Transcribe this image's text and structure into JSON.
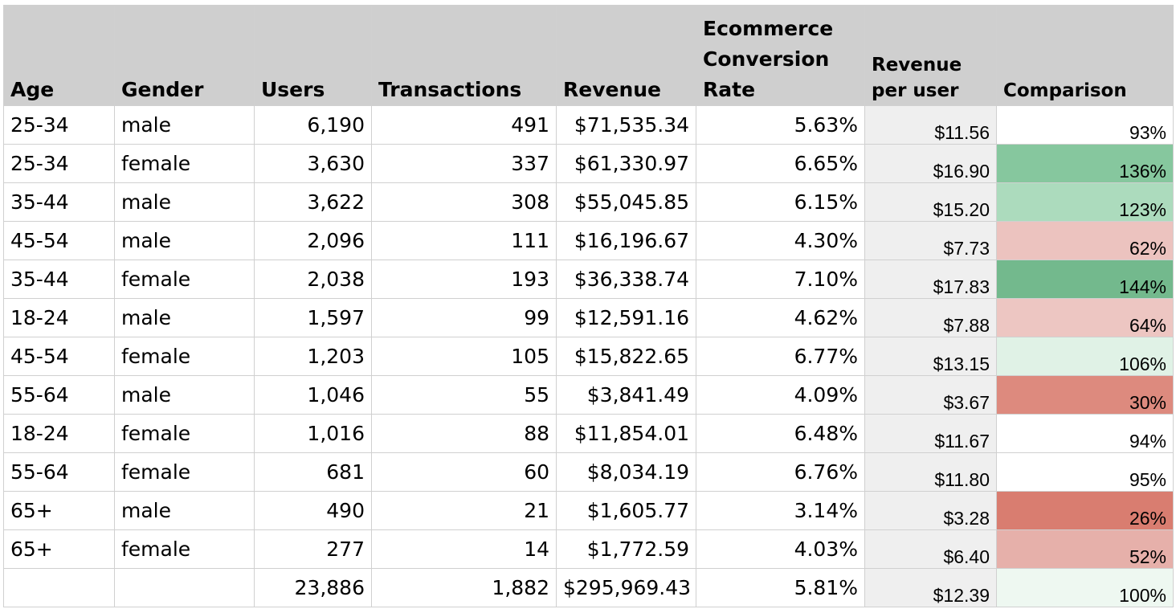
{
  "headers": {
    "age": "Age",
    "gender": "Gender",
    "users": "Users",
    "transactions": "Transactions",
    "revenue": "Revenue",
    "conversion_rate": "Ecommerce Conversion Rate",
    "revenue_per_user": "Revenue per user",
    "comparison": "Comparison"
  },
  "rows": [
    {
      "age": "25-34",
      "gender": "male",
      "users": "6,190",
      "transactions": "491",
      "revenue": "$71,535.34",
      "conversion_rate": "5.63%",
      "revenue_per_user": "$11.56",
      "comparison": "93%",
      "comparison_color": "#ffffff"
    },
    {
      "age": "25-34",
      "gender": "female",
      "users": "3,630",
      "transactions": "337",
      "revenue": "$61,330.97",
      "conversion_rate": "6.65%",
      "revenue_per_user": "$16.90",
      "comparison": "136%",
      "comparison_color": "#86c79e"
    },
    {
      "age": "35-44",
      "gender": "male",
      "users": "3,622",
      "transactions": "308",
      "revenue": "$55,045.85",
      "conversion_rate": "6.15%",
      "revenue_per_user": "$15.20",
      "comparison": "123%",
      "comparison_color": "#acdbbd"
    },
    {
      "age": "45-54",
      "gender": "male",
      "users": "2,096",
      "transactions": "111",
      "revenue": "$16,196.67",
      "conversion_rate": "4.30%",
      "revenue_per_user": "$7.73",
      "comparison": "62%",
      "comparison_color": "#ecc3bf"
    },
    {
      "age": "35-44",
      "gender": "female",
      "users": "2,038",
      "transactions": "193",
      "revenue": "$36,338.74",
      "conversion_rate": "7.10%",
      "revenue_per_user": "$17.83",
      "comparison": "144%",
      "comparison_color": "#73b98d"
    },
    {
      "age": "18-24",
      "gender": "male",
      "users": "1,597",
      "transactions": "99",
      "revenue": "$12,591.16",
      "conversion_rate": "4.62%",
      "revenue_per_user": "$7.88",
      "comparison": "64%",
      "comparison_color": "#edc6c2"
    },
    {
      "age": "45-54",
      "gender": "female",
      "users": "1,203",
      "transactions": "105",
      "revenue": "$15,822.65",
      "conversion_rate": "6.77%",
      "revenue_per_user": "$13.15",
      "comparison": "106%",
      "comparison_color": "#e0f2e6"
    },
    {
      "age": "55-64",
      "gender": "male",
      "users": "1,046",
      "transactions": "55",
      "revenue": "$3,841.49",
      "conversion_rate": "4.09%",
      "revenue_per_user": "$3.67",
      "comparison": "30%",
      "comparison_color": "#dd8a7e"
    },
    {
      "age": "18-24",
      "gender": "female",
      "users": "1,016",
      "transactions": "88",
      "revenue": "$11,854.01",
      "conversion_rate": "6.48%",
      "revenue_per_user": "$11.67",
      "comparison": "94%",
      "comparison_color": "#ffffff"
    },
    {
      "age": "55-64",
      "gender": "female",
      "users": "681",
      "transactions": "60",
      "revenue": "$8,034.19",
      "conversion_rate": "6.76%",
      "revenue_per_user": "$11.80",
      "comparison": "95%",
      "comparison_color": "#ffffff"
    },
    {
      "age": "65+",
      "gender": "male",
      "users": "490",
      "transactions": "21",
      "revenue": "$1,605.77",
      "conversion_rate": "3.14%",
      "revenue_per_user": "$3.28",
      "comparison": "26%",
      "comparison_color": "#d97d70"
    },
    {
      "age": "65+",
      "gender": "female",
      "users": "277",
      "transactions": "14",
      "revenue": "$1,772.59",
      "conversion_rate": "4.03%",
      "revenue_per_user": "$6.40",
      "comparison": "52%",
      "comparison_color": "#e6b0aa"
    }
  ],
  "total": {
    "age": "",
    "gender": "",
    "users": "23,886",
    "transactions": "1,882",
    "revenue": "$295,969.43",
    "conversion_rate": "5.81%",
    "revenue_per_user": "$12.39",
    "comparison": "100%",
    "comparison_color": "#eef8f1"
  }
}
